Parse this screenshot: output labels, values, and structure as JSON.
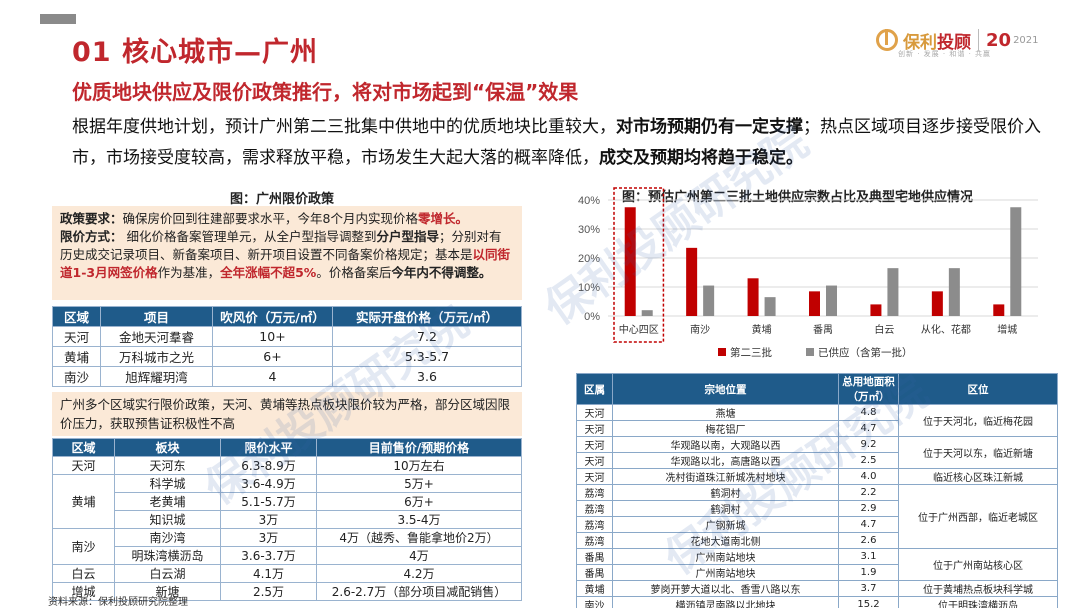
{
  "header": {
    "title": "01  核心城市—广州",
    "logo_text": "保利",
    "logo_text2": "投顾",
    "logo_num": "20",
    "logo_year": "2021",
    "logo_sub": "创新 · 发展 · 和谐 · 共赢"
  },
  "subtitle": "优质地块供应及限价政策推行，将对市场起到“保温”效果",
  "paragraph": {
    "p1": "根据年度供地计划，预计广州第二三批集中供地中的优质地块比重较大，",
    "b1": "对市场预期仍有一定支撑",
    "p2": "；热点区域项目逐步接受限价入市，市场接受度较高，需求释放平稳，市场发生大起大落的概率降低，",
    "b2": "成交及预期均将趋于稳定。"
  },
  "left": {
    "caption": "图：广州限价政策",
    "policy": {
      "l1a": "政策要求：",
      "l1b": "确保房价回到往建部要求水平，今年8个月内实现价格",
      "l1c": "零增长。",
      "l2a": "限价方式：",
      "l2b": " 细化价格备案管理单元，从全户型指导调整到",
      "l2c": "分户型指导",
      "l2d": "；分别对有历史成交记录项目、新备案项目、新开项目设置不同备案价格规定；基本是",
      "l2e": "以同街道1-3月网签价格",
      "l2f": "作为基准，",
      "l2g": "全年涨幅不超5%",
      "l2h": "。价格备案后",
      "l2i": "今年内不得调整。"
    },
    "table1": {
      "headers": [
        "区域",
        "项目",
        "吹风价（万元/㎡）",
        "实际开盘价格（万元/㎡）"
      ],
      "rows": [
        [
          "天河",
          "金地天河羣睿",
          "10+",
          "7.2"
        ],
        [
          "黄埔",
          "万科城市之光",
          "6+",
          "5.3-5.7"
        ],
        [
          "南沙",
          "旭辉耀玥湾",
          "4",
          "3.6"
        ]
      ]
    },
    "note": "广州多个区域实行限价政策，天河、黄埔等热点板块限价较为严格，部分区域因限价压力，获取预售证积极性不高",
    "table2": {
      "headers": [
        "区域",
        "板块",
        "限价水平",
        "目前售价/预期价格"
      ],
      "groups": [
        {
          "region": "天河",
          "rows": [
            [
              "天河东",
              "6.3-8.9万",
              "10万左右"
            ]
          ]
        },
        {
          "region": "黄埔",
          "rows": [
            [
              "科学城",
              "3.6-4.9万",
              "5万+"
            ],
            [
              "老黄埔",
              "5.1-5.7万",
              "6万+"
            ],
            [
              "知识城",
              "3万",
              "3.5-4万"
            ]
          ]
        },
        {
          "region": "南沙",
          "rows": [
            [
              "南沙湾",
              "3万",
              "4万（越秀、鲁能拿地价2万）"
            ],
            [
              "明珠湾横沥岛",
              "3.6-3.7万",
              "4万"
            ]
          ]
        },
        {
          "region": "白云",
          "rows": [
            [
              "白云湖",
              "4.1万",
              "4.2万"
            ]
          ]
        },
        {
          "region": "增城",
          "rows": [
            [
              "新塘",
              "2.5万",
              "2.6-2.7万（部分项目减配销售）"
            ]
          ]
        }
      ]
    }
  },
  "source": "资料来源：保利投顾研究院整理",
  "chart_caption": "图：预估广州第二三批土地供应宗数占比及典型宅地供应情况",
  "chart_data": {
    "type": "bar",
    "categories": [
      "中心四区",
      "南沙",
      "黄埔",
      "番禺",
      "白云",
      "从化、花都",
      "增城"
    ],
    "series": [
      {
        "name": "第二三批",
        "color": "#c00000",
        "values": [
          37.5,
          23.5,
          13.0,
          8.5,
          4.0,
          8.5,
          4.0
        ]
      },
      {
        "name": "已供应（含第一批）",
        "color": "#8c8c8c",
        "values": [
          2.0,
          10.5,
          6.5,
          10.5,
          16.5,
          16.5,
          37.5
        ]
      }
    ],
    "ylim": [
      0,
      40
    ],
    "yticks": [
      "0%",
      "10%",
      "20%",
      "30%",
      "40%"
    ],
    "legend": "bottom",
    "grid": true,
    "highlight": "中心四区"
  },
  "table3": {
    "headers": [
      "区属",
      "宗地位置",
      "总用地面积（万㎡）",
      "区位"
    ],
    "rows": [
      [
        "天河",
        "燕塘",
        "4.8"
      ],
      [
        "天河",
        "梅花铝厂",
        "4.7"
      ],
      [
        "天河",
        "华观路以南，大观路以西",
        "9.2"
      ],
      [
        "天河",
        "华观路以北，高唐路以西",
        "2.5"
      ],
      [
        "天河",
        "冼村街道珠江新城冼村地块",
        "4.0"
      ],
      [
        "荔湾",
        "鹤洞村",
        "2.2"
      ],
      [
        "荔湾",
        "鹤洞村",
        "2.9"
      ],
      [
        "荔湾",
        "广钢新城",
        "4.7"
      ],
      [
        "荔湾",
        "花地大道南北侧",
        "2.6"
      ],
      [
        "番禺",
        "广州南站地块",
        "3.1"
      ],
      [
        "番禺",
        "广州南站地块",
        "1.9"
      ],
      [
        "黄埔",
        "萝岗开萝大道以北、香雪八路以东",
        "3.7"
      ],
      [
        "南沙",
        "横沥镇灵南路以北地块",
        "15.2"
      ]
    ],
    "zones": [
      "位于天河北，临近梅花园",
      "位于天河以东，临近新塘",
      "临近核心区珠江新城",
      "位于广州西部，临近老城区",
      "位于广州南站核心区",
      "位于黄埔热点板块科学城",
      "位于明珠湾横沥岛"
    ]
  },
  "watermark": "保利投顾研究院"
}
